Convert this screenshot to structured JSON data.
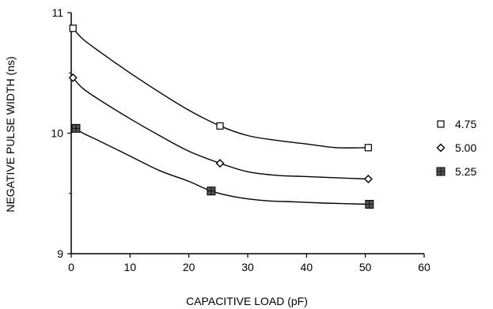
{
  "chart_data": {
    "type": "line",
    "xlabel": "CAPACITIVE LOAD (pF)",
    "ylabel": "NEGATIVE PULSE WIDTH (ns)",
    "xlim": [
      0,
      60
    ],
    "ylim": [
      9,
      11
    ],
    "x_ticks": [
      0,
      10,
      20,
      30,
      40,
      50,
      60
    ],
    "y_ticks": [
      9,
      10,
      11
    ],
    "grid": false,
    "legend_position": "right",
    "series": [
      {
        "name": "4.75",
        "marker": "open-square",
        "markers": [
          [
            0.3,
            10.87
          ],
          [
            25.3,
            10.06
          ],
          [
            50.5,
            9.88
          ]
        ],
        "curve": [
          [
            0.3,
            10.87
          ],
          [
            2,
            10.78
          ],
          [
            5,
            10.67
          ],
          [
            10,
            10.5
          ],
          [
            15,
            10.34
          ],
          [
            20,
            10.19
          ],
          [
            25.3,
            10.06
          ],
          [
            30,
            9.98
          ],
          [
            35,
            9.94
          ],
          [
            40,
            9.91
          ],
          [
            45,
            9.88
          ],
          [
            50.5,
            9.88
          ]
        ]
      },
      {
        "name": "5.00",
        "marker": "open-diamond",
        "markers": [
          [
            0.3,
            10.46
          ],
          [
            25.3,
            9.75
          ],
          [
            50.5,
            9.62
          ]
        ],
        "curve": [
          [
            0.3,
            10.46
          ],
          [
            2,
            10.37
          ],
          [
            5,
            10.27
          ],
          [
            10,
            10.12
          ],
          [
            15,
            9.98
          ],
          [
            20,
            9.85
          ],
          [
            25.3,
            9.75
          ],
          [
            30,
            9.68
          ],
          [
            35,
            9.65
          ],
          [
            40,
            9.64
          ],
          [
            45,
            9.63
          ],
          [
            50.5,
            9.62
          ]
        ]
      },
      {
        "name": "5.25",
        "marker": "filled-square",
        "markers": [
          [
            0.8,
            10.04
          ],
          [
            23.8,
            9.52
          ],
          [
            50.7,
            9.41
          ]
        ],
        "curve": [
          [
            0.3,
            10.05
          ],
          [
            2,
            10.0
          ],
          [
            5,
            9.93
          ],
          [
            10,
            9.81
          ],
          [
            15,
            9.69
          ],
          [
            20,
            9.6
          ],
          [
            23.8,
            9.52
          ],
          [
            28,
            9.47
          ],
          [
            33,
            9.44
          ],
          [
            38,
            9.43
          ],
          [
            43,
            9.42
          ],
          [
            50.7,
            9.41
          ]
        ]
      }
    ]
  }
}
